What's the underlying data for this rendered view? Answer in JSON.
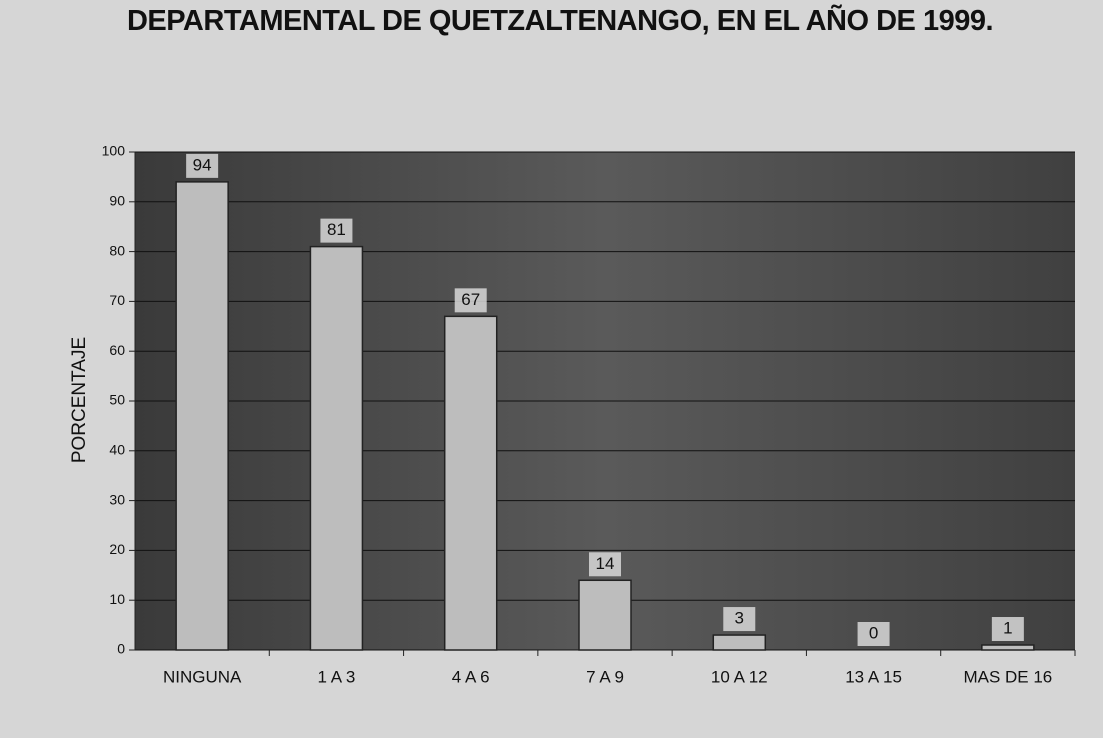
{
  "chart_data": {
    "type": "bar",
    "title": "DEPARTAMENTAL DE QUETZALTENANGO, EN EL AÑO DE 1999.",
    "y_label": "PORCENTAJE",
    "categories": [
      "NINGUNA",
      "1 A 3",
      "4 A 6",
      "7 A 9",
      "10 A 12",
      "13 A 15",
      "MAS DE 16"
    ],
    "values": [
      94,
      81,
      67,
      14,
      3,
      0,
      1
    ],
    "color": "#bdbdbd",
    "ylim": [
      0,
      100
    ],
    "yticks": [
      0,
      10,
      20,
      30,
      40,
      50,
      60,
      70,
      80,
      90,
      100
    ],
    "grid": true
  }
}
